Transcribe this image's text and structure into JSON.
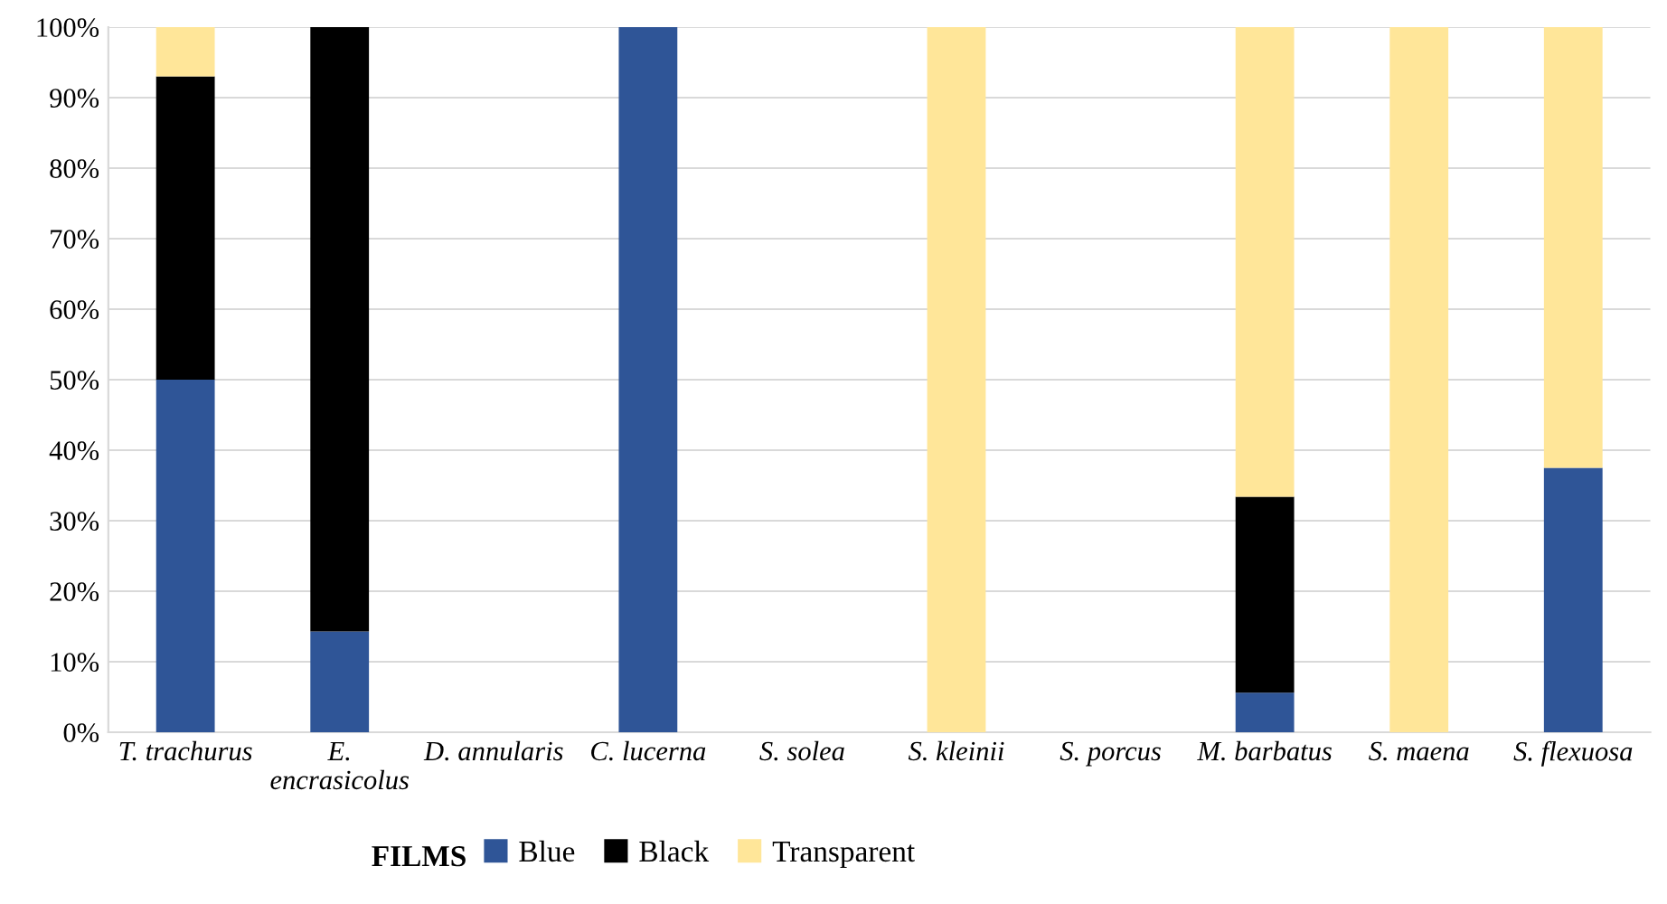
{
  "chart_data": {
    "type": "bar",
    "stacked": true,
    "categories": [
      "T. trachurus",
      "E.\nencrasicolus",
      "D. annularis",
      "C. lucerna",
      "S. solea",
      "S. kleinii",
      "S. porcus",
      "M. barbatus",
      "S. maena",
      "S. flexuosa"
    ],
    "series": [
      {
        "name": "Blue",
        "color": "#2f5597",
        "values": [
          50,
          14.3,
          0,
          100,
          0,
          0,
          0,
          5.6,
          0,
          37.5
        ]
      },
      {
        "name": "Black",
        "color": "#000000",
        "values": [
          43,
          85.7,
          0,
          0,
          0,
          0,
          0,
          27.8,
          0,
          0
        ]
      },
      {
        "name": "Transparent",
        "color": "#ffe699",
        "values": [
          7,
          0,
          0,
          0,
          0,
          100,
          0,
          66.6,
          100,
          62.5
        ]
      }
    ],
    "legend_title": "FILMS",
    "legend": "bottom",
    "grid": "y",
    "ylim": [
      0,
      100
    ],
    "yticks": [
      {
        "value": 0,
        "label": "0%"
      },
      {
        "value": 10,
        "label": "10%"
      },
      {
        "value": 20,
        "label": "20%"
      },
      {
        "value": 30,
        "label": "30%"
      },
      {
        "value": 40,
        "label": "40%"
      },
      {
        "value": 50,
        "label": "50%"
      },
      {
        "value": 60,
        "label": "60%"
      },
      {
        "value": 70,
        "label": "70%"
      },
      {
        "value": 80,
        "label": "80%"
      },
      {
        "value": 90,
        "label": "90%"
      },
      {
        "value": 100,
        "label": "100%"
      }
    ]
  }
}
